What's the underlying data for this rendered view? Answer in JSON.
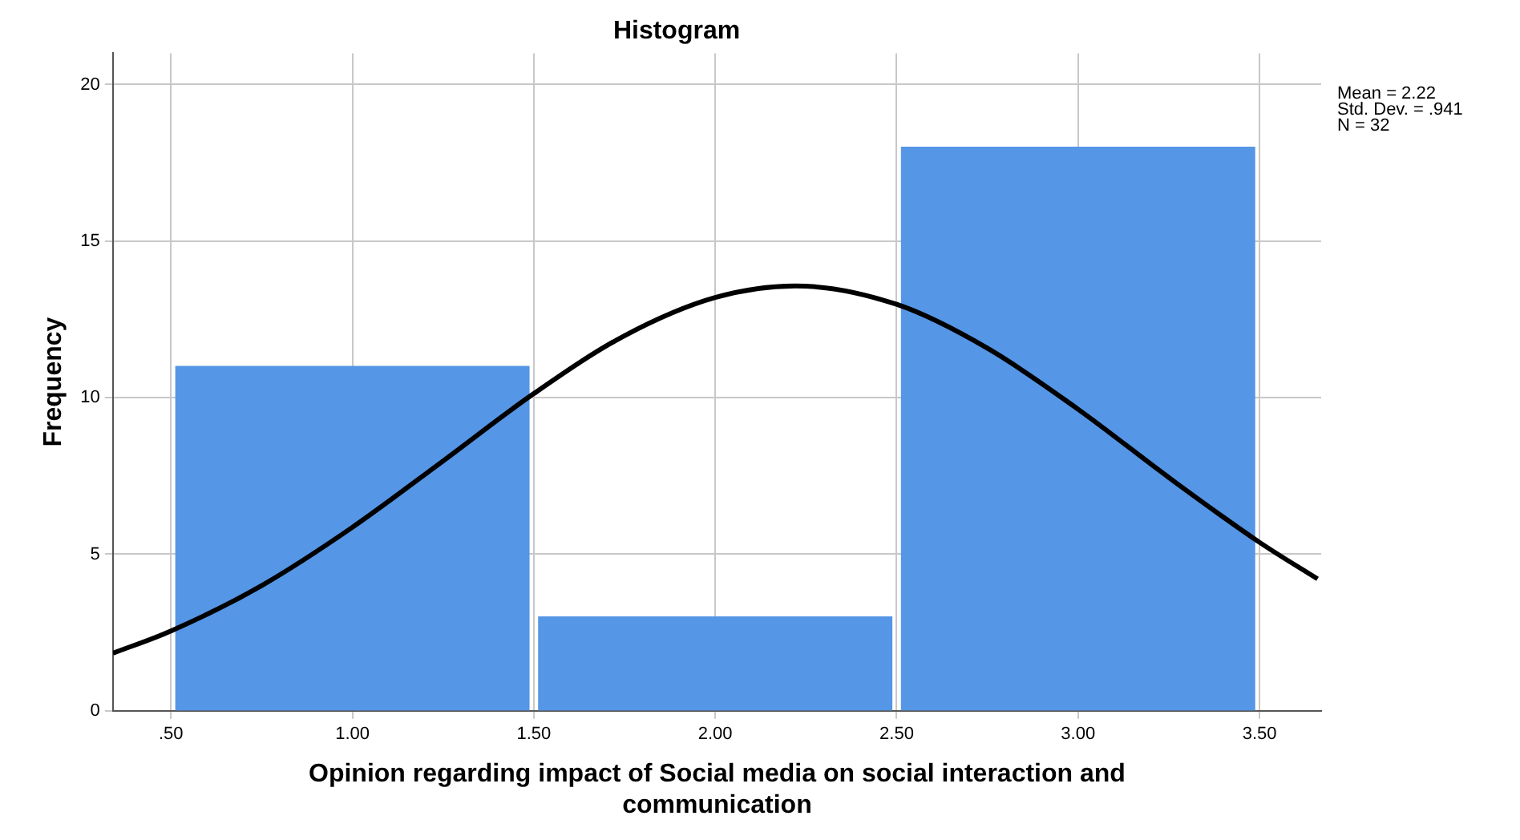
{
  "chart_data": {
    "type": "histogram",
    "title": "Histogram",
    "xlabel": "Opinion regarding impact of Social media on social interaction and communication",
    "ylabel": "Frequency",
    "bins": [
      0.5,
      1.5,
      2.5,
      3.5
    ],
    "values": [
      11,
      3,
      18
    ],
    "color": "#5596e6",
    "series": [
      {
        "type": "line",
        "color": "#000000",
        "x": [
          0.34,
          0.5,
          0.75,
          1.0,
          1.25,
          1.5,
          1.75,
          2.0,
          2.22,
          2.5,
          2.75,
          3.0,
          3.25,
          3.5,
          3.66
        ],
        "values": [
          1.84,
          2.55,
          4.0,
          5.86,
          7.98,
          10.13,
          11.98,
          13.2,
          13.57,
          12.98,
          11.58,
          9.63,
          7.45,
          5.38,
          4.21
        ]
      }
    ],
    "xlim": [
      0.34,
      3.67
    ],
    "xticks": [
      {
        "value": 0.5,
        "label": ".50"
      },
      {
        "value": 1.0,
        "label": "1.00"
      },
      {
        "value": 1.5,
        "label": "1.50"
      },
      {
        "value": 2.0,
        "label": "2.00"
      },
      {
        "value": 2.5,
        "label": "2.50"
      },
      {
        "value": 3.0,
        "label": "3.00"
      },
      {
        "value": 3.5,
        "label": "3.50"
      }
    ],
    "ylim": [
      0,
      21
    ],
    "yticks": [
      0,
      5,
      10,
      15,
      20
    ],
    "grid": true,
    "legend": false,
    "marker": "none",
    "line_style": "solid",
    "annotations": [
      "Mean = 2.22",
      "Std. Dev. = .941",
      "N = 32"
    ]
  }
}
